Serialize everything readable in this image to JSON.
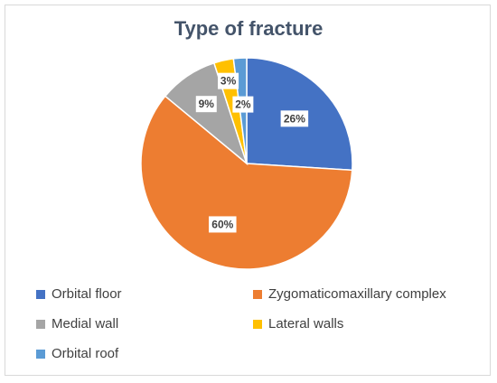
{
  "chart_data": {
    "type": "pie",
    "title": "Type of fracture",
    "slices": [
      {
        "name": "Orbital floor",
        "value": 26,
        "label": "26%",
        "color": "#4472c4"
      },
      {
        "name": "Zygomaticomaxillary complex",
        "value": 60,
        "label": "60%",
        "color": "#ed7d31"
      },
      {
        "name": "Medial wall",
        "value": 9,
        "label": "9%",
        "color": "#a5a5a5"
      },
      {
        "name": "Lateral walls",
        "value": 3,
        "label": "3%",
        "color": "#ffc000"
      },
      {
        "name": "Orbital roof",
        "value": 2,
        "label": "2%",
        "color": "#5b9bd5"
      }
    ],
    "legend_position": "bottom"
  }
}
